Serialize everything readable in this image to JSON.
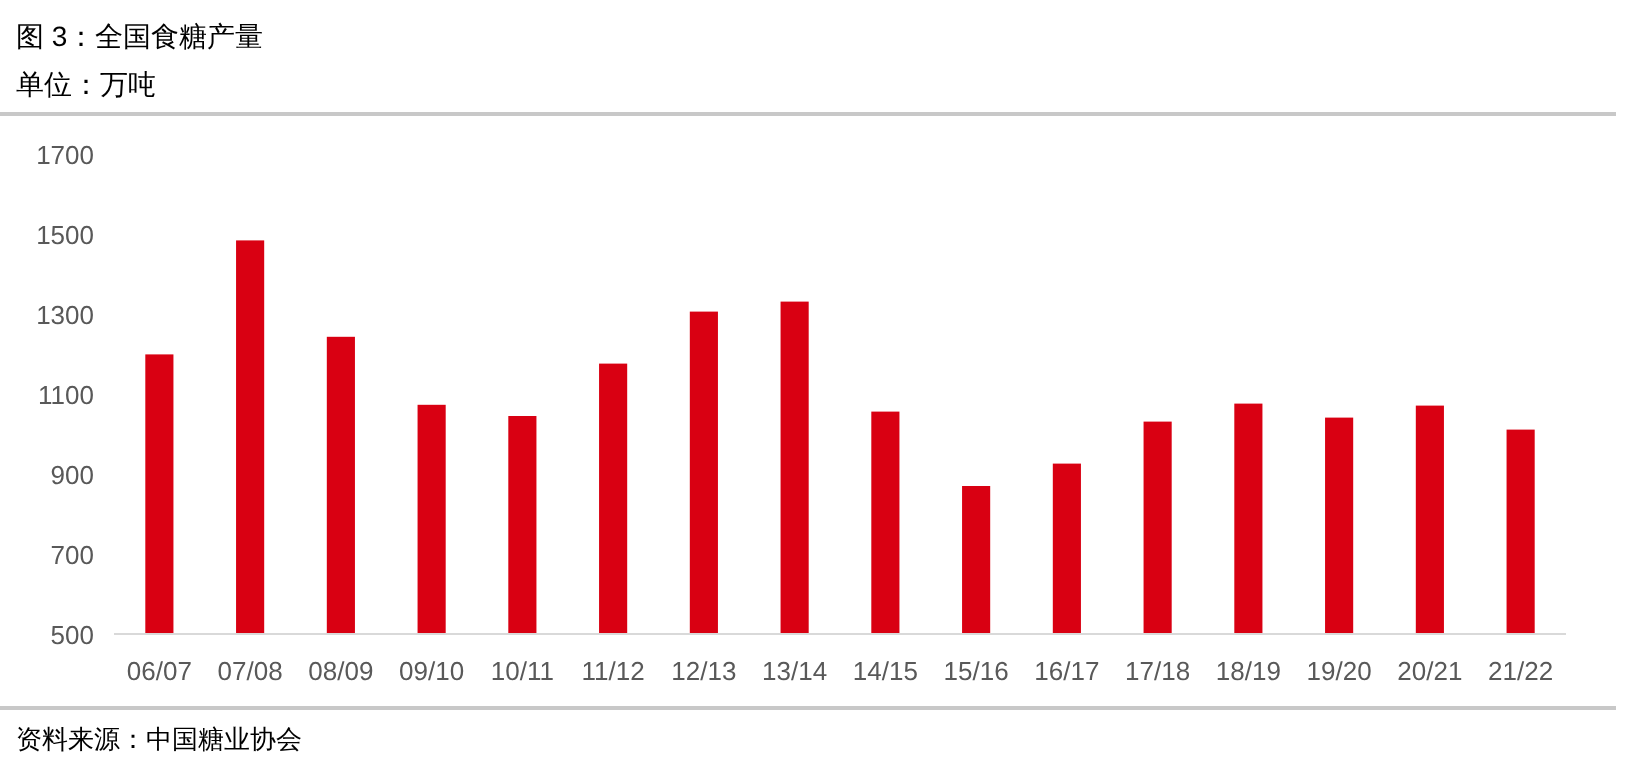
{
  "chart_data": {
    "type": "bar",
    "title": "图 3：全国食糖产量",
    "subtitle": "单位：万吨",
    "categories": [
      "06/07",
      "07/08",
      "08/09",
      "09/10",
      "10/11",
      "11/12",
      "12/13",
      "13/14",
      "14/15",
      "15/16",
      "16/17",
      "17/18",
      "18/19",
      "19/20",
      "20/21",
      "21/22"
    ],
    "values": [
      1199,
      1484,
      1243,
      1073,
      1045,
      1176,
      1306,
      1331,
      1056,
      870,
      926,
      1031,
      1076,
      1041,
      1071,
      1011
    ],
    "color": "#d90012",
    "ylim": [
      500,
      1700
    ],
    "yticks": [
      500,
      700,
      900,
      1100,
      1300,
      1500,
      1700
    ],
    "grid": false,
    "annotations": [
      "资料来源：中国糖业协会"
    ]
  }
}
